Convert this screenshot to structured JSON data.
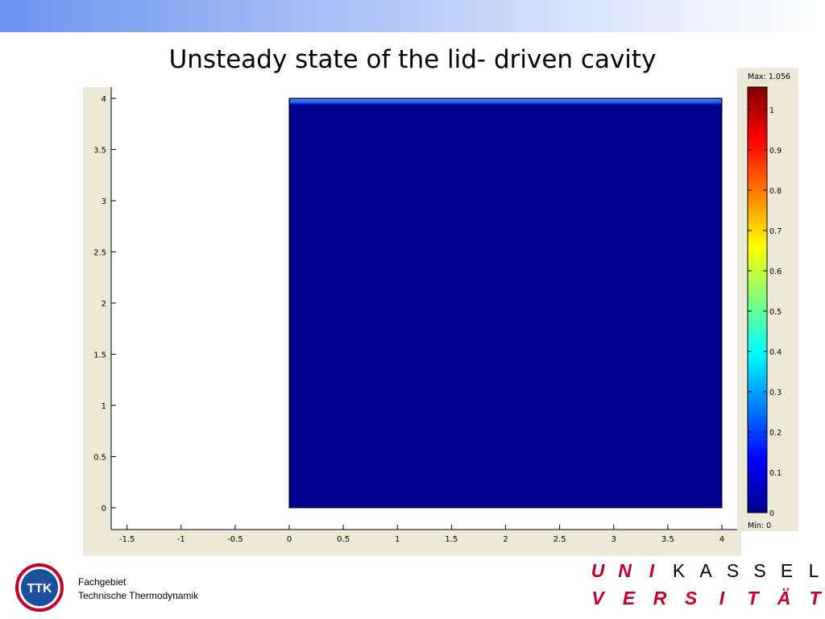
{
  "slide": {
    "title": "Unsteady state of the lid- driven cavity"
  },
  "colors": {
    "top_band": "#6d93ee",
    "panel_bg": "#ece9d8",
    "field_fill": "#00008f",
    "lid_highlight": "#1e64ff",
    "uni_red": "#c4002a",
    "ttk_blue": "#1a4f9c"
  },
  "chart_data": {
    "type": "heatmap",
    "title": "",
    "xlabel": "",
    "ylabel": "",
    "xlim": [
      -1.7,
      4.2
    ],
    "ylim": [
      -0.2,
      4.1
    ],
    "x_ticks": [
      "-1.5",
      "-1",
      "-0.5",
      "0",
      "0.5",
      "1",
      "1.5",
      "2",
      "2.5",
      "3",
      "3.5",
      "4"
    ],
    "y_ticks": [
      "4",
      "3.5",
      "3",
      "2.5",
      "2",
      "1.5",
      "1",
      "0.5",
      "0"
    ],
    "domain": {
      "x": [
        0,
        4
      ],
      "y": [
        0,
        4
      ]
    },
    "field": {
      "bulk_value": 0,
      "lid_y": 4,
      "lid_value_approx": 0.2
    },
    "colorbar": {
      "colormap": "jet",
      "max_label": "Max: 1.056",
      "min_label": "Min: 0",
      "max": 1.056,
      "min": 0,
      "tick_labels": [
        "1",
        "0.9",
        "0.8",
        "0.7",
        "0.6",
        "0.5",
        "0.4",
        "0.3",
        "0.2",
        "0.1",
        "0"
      ]
    },
    "grid": false
  },
  "footer": {
    "logo_text": "TTK",
    "department_line1": "Fachgebiet",
    "department_line2": "Technische Thermodynamik",
    "university_row1": [
      "U",
      "N",
      "I",
      "K",
      "A",
      "S",
      "S",
      "E",
      "L"
    ],
    "university_row2": [
      "V",
      "E",
      "R",
      "S",
      "I",
      "T",
      "Ä",
      "T"
    ]
  }
}
